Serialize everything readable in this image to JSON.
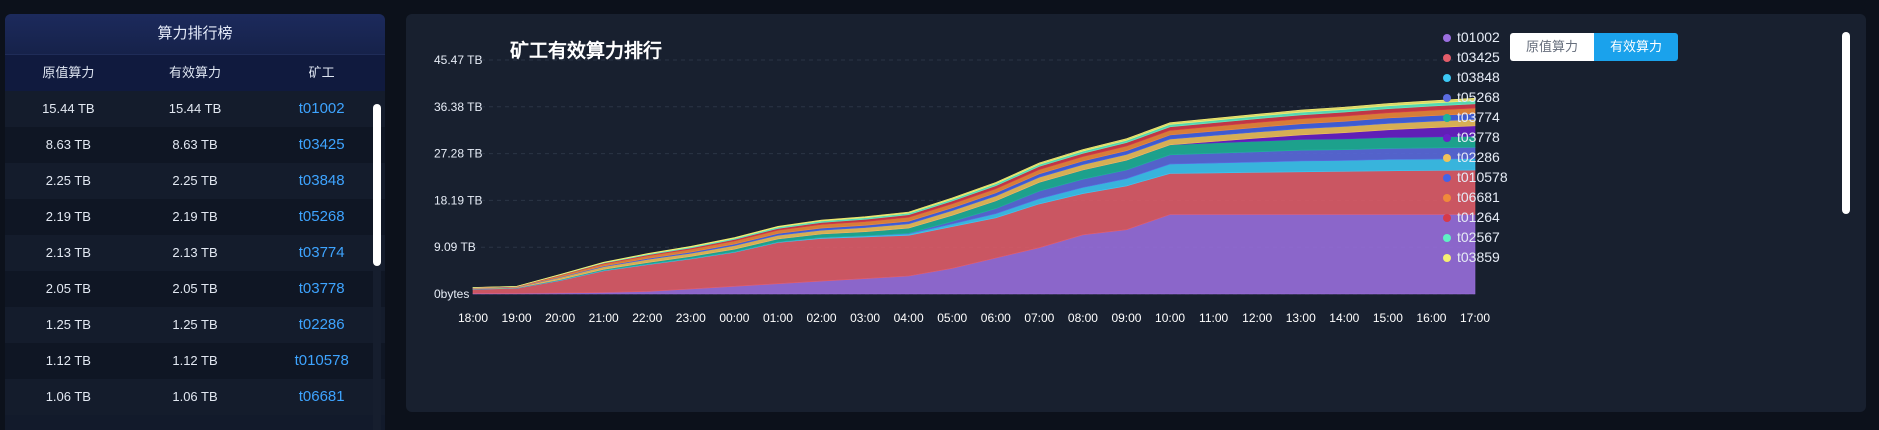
{
  "ranking": {
    "title": "算力排行榜",
    "headers": [
      "原值算力",
      "有效算力",
      "矿工"
    ],
    "rows": [
      {
        "raw": "15.44 TB",
        "effective": "15.44 TB",
        "miner": "t01002"
      },
      {
        "raw": "8.63 TB",
        "effective": "8.63 TB",
        "miner": "t03425"
      },
      {
        "raw": "2.25 TB",
        "effective": "2.25 TB",
        "miner": "t03848"
      },
      {
        "raw": "2.19 TB",
        "effective": "2.19 TB",
        "miner": "t05268"
      },
      {
        "raw": "2.13 TB",
        "effective": "2.13 TB",
        "miner": "t03774"
      },
      {
        "raw": "2.05 TB",
        "effective": "2.05 TB",
        "miner": "t03778"
      },
      {
        "raw": "1.25 TB",
        "effective": "1.25 TB",
        "miner": "t02286"
      },
      {
        "raw": "1.12 TB",
        "effective": "1.12 TB",
        "miner": "t010578"
      },
      {
        "raw": "1.06 TB",
        "effective": "1.06 TB",
        "miner": "t06681"
      }
    ]
  },
  "toggle": {
    "raw_label": "原值算力",
    "effective_label": "有效算力"
  },
  "chart_data": {
    "type": "area",
    "title": "矿工有效算力排行",
    "xlabel": "",
    "ylabel": "",
    "y_ticks": [
      "0bytes",
      "9.09 TB",
      "18.19 TB",
      "27.28 TB",
      "36.38 TB",
      "45.47 TB"
    ],
    "ylim": [
      0,
      45.47
    ],
    "x": [
      "18:00",
      "19:00",
      "20:00",
      "21:00",
      "22:00",
      "23:00",
      "00:00",
      "01:00",
      "02:00",
      "03:00",
      "04:00",
      "05:00",
      "06:00",
      "07:00",
      "08:00",
      "09:00",
      "10:00",
      "11:00",
      "12:00",
      "13:00",
      "14:00",
      "15:00",
      "16:00",
      "17:00"
    ],
    "series": [
      {
        "name": "t01002",
        "color": "#9b6fe0",
        "values": [
          0.1,
          0.1,
          0.2,
          0.3,
          0.5,
          1.0,
          1.5,
          2.0,
          2.5,
          3.0,
          3.5,
          5.0,
          7.0,
          9.0,
          11.5,
          12.5,
          15.44,
          15.44,
          15.44,
          15.44,
          15.44,
          15.44,
          15.44,
          15.44
        ]
      },
      {
        "name": "t03425",
        "color": "#e35d6a",
        "values": [
          0.8,
          1.0,
          2.4,
          4.2,
          5.2,
          5.8,
          6.6,
          8.0,
          8.3,
          8.1,
          7.9,
          8.1,
          7.8,
          8.5,
          8.0,
          8.5,
          8.0,
          8.1,
          8.2,
          8.3,
          8.4,
          8.5,
          8.55,
          8.63
        ]
      },
      {
        "name": "t03848",
        "color": "#3cc8f5",
        "values": [
          0.05,
          0.05,
          0.1,
          0.1,
          0.1,
          0.1,
          0.1,
          0.1,
          0.15,
          0.2,
          0.3,
          0.5,
          0.8,
          1.0,
          1.2,
          1.4,
          1.8,
          1.9,
          2.0,
          2.1,
          2.1,
          2.2,
          2.2,
          2.25
        ]
      },
      {
        "name": "t05268",
        "color": "#5b6be0",
        "values": [
          0,
          0,
          0,
          0,
          0,
          0,
          0,
          0,
          0,
          0,
          0.1,
          0.5,
          1.0,
          1.5,
          1.6,
          1.7,
          1.8,
          1.9,
          2.0,
          2.1,
          2.1,
          2.15,
          2.19,
          2.19
        ]
      },
      {
        "name": "t03774",
        "color": "#1eb39a",
        "values": [
          0.05,
          0.05,
          0.1,
          0.2,
          0.3,
          0.4,
          0.5,
          0.6,
          0.7,
          0.8,
          1.0,
          1.2,
          1.5,
          1.7,
          1.8,
          1.9,
          1.95,
          2.0,
          2.05,
          2.08,
          2.1,
          2.12,
          2.13,
          2.13
        ]
      },
      {
        "name": "t03778",
        "color": "#6a1fc9",
        "values": [
          0,
          0,
          0,
          0,
          0,
          0,
          0,
          0,
          0,
          0,
          0,
          0,
          0,
          0,
          0,
          0,
          0,
          0.3,
          0.6,
          0.9,
          1.2,
          1.5,
          1.8,
          2.05
        ]
      },
      {
        "name": "t02286",
        "color": "#f0c15a",
        "values": [
          0.1,
          0.1,
          0.4,
          0.5,
          0.6,
          0.6,
          0.7,
          0.7,
          0.75,
          0.8,
          0.85,
          0.9,
          0.95,
          1.0,
          1.05,
          1.1,
          1.1,
          1.15,
          1.18,
          1.2,
          1.22,
          1.23,
          1.24,
          1.25
        ]
      },
      {
        "name": "t010578",
        "color": "#4363e8",
        "values": [
          0.05,
          0.05,
          0.1,
          0.15,
          0.2,
          0.25,
          0.3,
          0.35,
          0.4,
          0.45,
          0.5,
          0.55,
          0.6,
          0.65,
          0.7,
          0.75,
          0.8,
          0.85,
          0.9,
          0.95,
          1.0,
          1.05,
          1.1,
          1.12
        ]
      },
      {
        "name": "t06681",
        "color": "#f08a3a",
        "values": [
          0.05,
          0.05,
          0.3,
          0.4,
          0.5,
          0.55,
          0.6,
          0.65,
          0.7,
          0.72,
          0.75,
          0.78,
          0.8,
          0.82,
          0.85,
          0.88,
          0.9,
          0.92,
          0.95,
          0.98,
          1.0,
          1.02,
          1.04,
          1.06
        ]
      },
      {
        "name": "t01264",
        "color": "#d63a4a",
        "values": [
          0.05,
          0.05,
          0.1,
          0.15,
          0.2,
          0.25,
          0.3,
          0.35,
          0.4,
          0.45,
          0.5,
          0.55,
          0.6,
          0.62,
          0.65,
          0.68,
          0.7,
          0.72,
          0.74,
          0.76,
          0.78,
          0.8,
          0.82,
          0.84
        ]
      },
      {
        "name": "t02567",
        "color": "#5ff0c4",
        "values": [
          0.02,
          0.02,
          0.05,
          0.1,
          0.15,
          0.2,
          0.22,
          0.25,
          0.28,
          0.3,
          0.32,
          0.35,
          0.38,
          0.4,
          0.42,
          0.44,
          0.46,
          0.48,
          0.5,
          0.52,
          0.54,
          0.56,
          0.58,
          0.6
        ]
      },
      {
        "name": "t03859",
        "color": "#f6ef72",
        "values": [
          0.02,
          0.02,
          0.05,
          0.08,
          0.1,
          0.12,
          0.14,
          0.16,
          0.18,
          0.2,
          0.22,
          0.24,
          0.26,
          0.28,
          0.3,
          0.32,
          0.34,
          0.36,
          0.38,
          0.4,
          0.42,
          0.44,
          0.46,
          0.48
        ]
      }
    ]
  }
}
